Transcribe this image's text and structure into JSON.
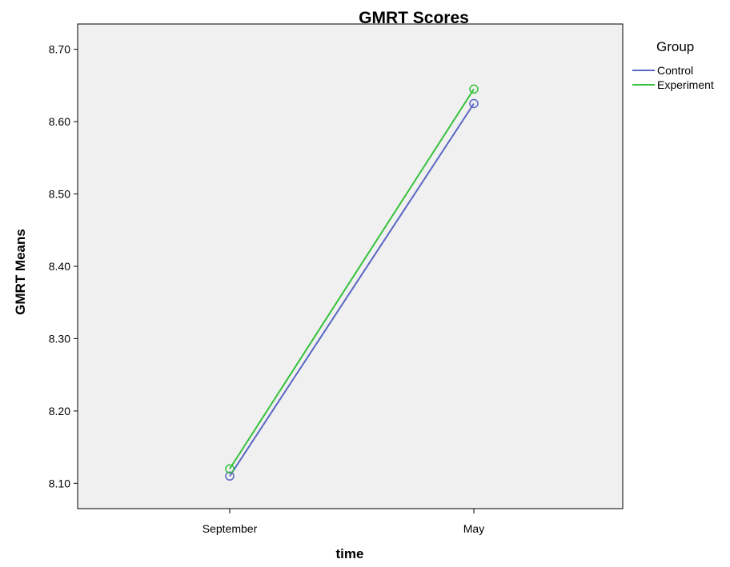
{
  "chart_data": {
    "type": "line",
    "title": "GMRT Scores",
    "xlabel": "time",
    "ylabel": "GMRT Means",
    "categories": [
      "September",
      "May"
    ],
    "y_ticks": [
      "8.10",
      "8.20",
      "8.30",
      "8.40",
      "8.50",
      "8.60",
      "8.70"
    ],
    "ylim": [
      8.065,
      8.735
    ],
    "grid": false,
    "legend": {
      "title": "Group",
      "placement": "right"
    },
    "series": [
      {
        "name": "Control",
        "values": [
          8.11,
          8.625
        ],
        "color": "#5a66c4",
        "marker": "open-circle"
      },
      {
        "name": "Experiment",
        "values": [
          8.12,
          8.645
        ],
        "color": "#35c23c",
        "marker": "open-circle"
      }
    ]
  },
  "colors": {
    "plot_background": "#f0f0f0",
    "axis": "#000000"
  }
}
